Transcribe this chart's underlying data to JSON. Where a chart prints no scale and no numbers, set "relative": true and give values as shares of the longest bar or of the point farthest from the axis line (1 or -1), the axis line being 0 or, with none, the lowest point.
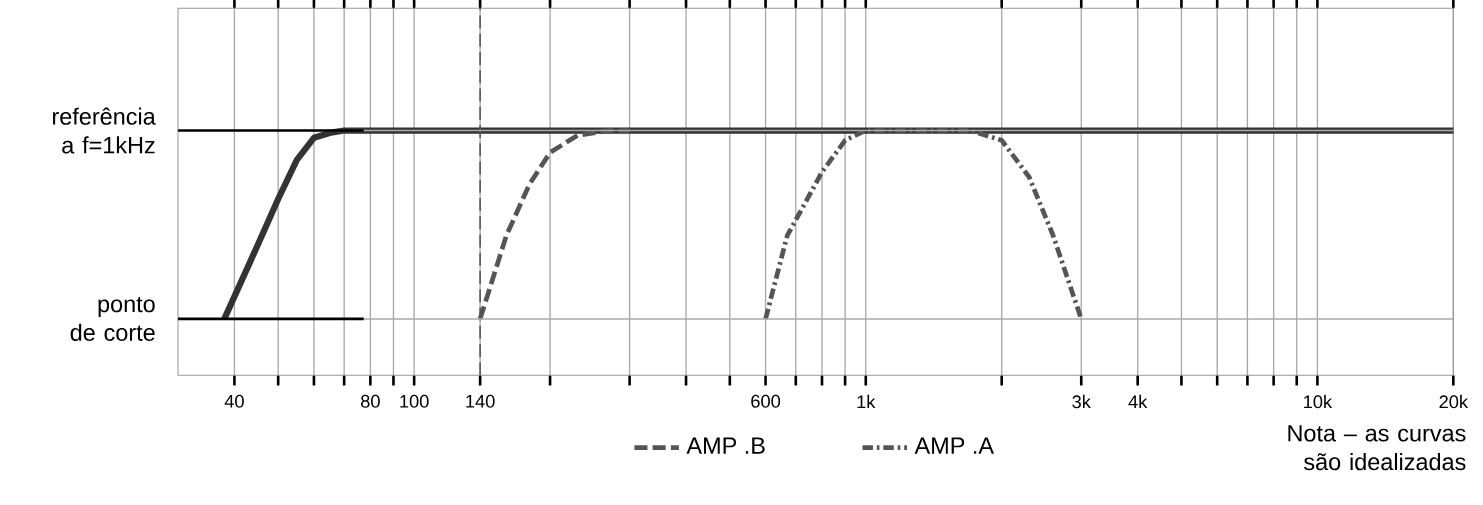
{
  "chart_data": {
    "type": "line",
    "relative": true,
    "log": "x",
    "grid": "x",
    "legend": "bottom",
    "xlim": [
      30,
      20000
    ],
    "xticks": [
      40,
      {
        "value": 50,
        "label": null
      },
      {
        "value": 60,
        "label": null
      },
      {
        "value": 70,
        "label": null
      },
      80,
      {
        "value": 90,
        "label": null
      },
      100,
      140,
      {
        "value": 200,
        "label": null
      },
      {
        "value": 300,
        "label": null
      },
      {
        "value": 400,
        "label": null
      },
      {
        "value": 500,
        "label": null
      },
      600,
      {
        "value": 700,
        "label": null
      },
      {
        "value": 800,
        "label": null
      },
      {
        "value": 900,
        "label": null
      },
      {
        "value": 1000,
        "label": "1k"
      },
      {
        "value": 2000,
        "label": null
      },
      {
        "value": 3000,
        "label": "3k"
      },
      {
        "value": 4000,
        "label": "4k"
      },
      {
        "value": 5000,
        "label": null
      },
      {
        "value": 6000,
        "label": null
      },
      {
        "value": 7000,
        "label": null
      },
      {
        "value": 8000,
        "label": null
      },
      {
        "value": 9000,
        "label": null
      },
      {
        "value": 10000,
        "label": "10k"
      },
      {
        "value": 20000,
        "label": "20k"
      }
    ],
    "ref_lines": [
      {
        "axis": "x",
        "value": 140,
        "line_style": "dashed",
        "color": "#555555"
      },
      {
        "axis": "y",
        "value": 1,
        "label": "referência a f=1kHz",
        "color": "#aaaaaa"
      },
      {
        "axis": "y",
        "value": 0.23,
        "label": "ponto de corte",
        "color": "#aaaaaa"
      }
    ],
    "annotations": [
      "Nota – as curvas são idealizadas"
    ],
    "series": [
      {
        "color": "#333333",
        "line_style": "solid",
        "x": [
          38,
          45,
          50,
          55,
          60,
          65,
          70,
          20000
        ],
        "values": [
          0.23,
          0.53,
          0.72,
          0.88,
          0.97,
          0.99,
          1,
          1
        ]
      },
      {
        "name": "AMP .B",
        "color": "#555555",
        "line_style": "dashed",
        "x": [
          140,
          160,
          180,
          200,
          230,
          270,
          300
        ],
        "values": [
          0.23,
          0.57,
          0.78,
          0.91,
          0.98,
          1,
          1
        ]
      },
      {
        "name": "AMP .A",
        "color": "#555555",
        "line_style": "dashdot",
        "x": [
          600,
          670,
          800,
          900,
          1000,
          1700,
          2000,
          2300,
          2600,
          3000
        ],
        "values": [
          0.23,
          0.57,
          0.83,
          0.96,
          1,
          1,
          0.96,
          0.81,
          0.57,
          0.23
        ]
      }
    ]
  }
}
